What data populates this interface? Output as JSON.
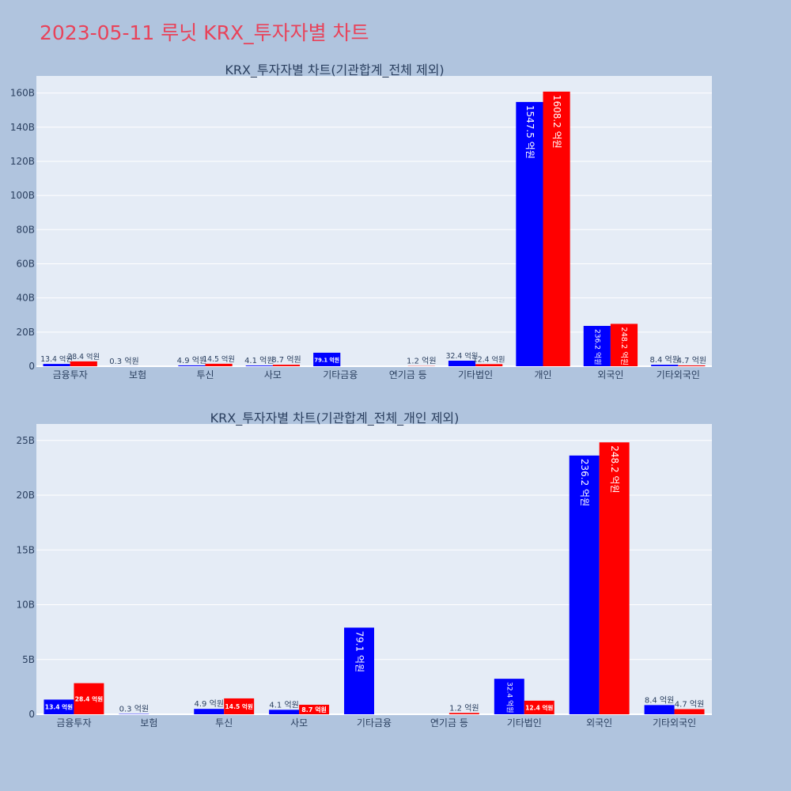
{
  "page_title": "2023-05-11 루닛 KRX_투자자별 차트",
  "chart_data": [
    {
      "type": "bar",
      "title": "KRX_투자자별 차트(기관합계_전체 제외)",
      "categories": [
        "금융투자",
        "보험",
        "투신",
        "사모",
        "기타금융",
        "연기금 등",
        "기타법인",
        "개인",
        "외국인",
        "기타외국인"
      ],
      "series": [
        {
          "color": "#0000ff",
          "values": [
            1.34,
            0.03,
            0.49,
            0.41,
            7.91,
            0,
            3.24,
            154.75,
            23.62,
            0.84
          ],
          "labels": [
            "13.4 억원",
            "0.3 억원",
            "4.9 억원",
            "4.1 억원",
            "79.1 억원",
            "",
            "32.4 억원",
            "1547.5 억원",
            "236.2 억원",
            "8.4 억원"
          ]
        },
        {
          "color": "#ff0000",
          "values": [
            2.84,
            0,
            1.45,
            0.87,
            0,
            0.12,
            1.24,
            160.82,
            24.82,
            0.47
          ],
          "labels": [
            "28.4 억원",
            "",
            "14.5 억원",
            "8.7 억원",
            "",
            "1.2 억원",
            "12.4 억원",
            "1608.2 억원",
            "248.2 억원",
            "4.7 억원"
          ]
        }
      ],
      "yticks": [
        0,
        20,
        40,
        60,
        80,
        100,
        120,
        140,
        160
      ],
      "ytick_labels": [
        "0",
        "20B",
        "40B",
        "60B",
        "80B",
        "100B",
        "120B",
        "140B",
        "160B"
      ],
      "ylim": [
        0,
        170
      ],
      "grid": true
    },
    {
      "type": "bar",
      "title": "KRX_투자자별 차트(기관합계_전체_개인 제외)",
      "categories": [
        "금융투자",
        "보험",
        "투신",
        "사모",
        "기타금융",
        "연기금 등",
        "기타법인",
        "외국인",
        "기타외국인"
      ],
      "series": [
        {
          "color": "#0000ff",
          "values": [
            1.34,
            0.03,
            0.49,
            0.41,
            7.91,
            0,
            3.24,
            23.62,
            0.84
          ],
          "labels": [
            "13.4 억원",
            "0.3 억원",
            "4.9 억원",
            "4.1 억원",
            "79.1 억원",
            "",
            "32.4 억원",
            "236.2 억원",
            "8.4 억원"
          ]
        },
        {
          "color": "#ff0000",
          "values": [
            2.84,
            0,
            1.45,
            0.87,
            0,
            0.12,
            1.24,
            24.82,
            0.47
          ],
          "labels": [
            "28.4 억원",
            "",
            "14.5 억원",
            "8.7 억원",
            "",
            "1.2 억원",
            "12.4 억원",
            "248.2 억원",
            "4.7 억원"
          ]
        }
      ],
      "yticks": [
        0,
        5,
        10,
        15,
        20,
        25
      ],
      "ytick_labels": [
        "0",
        "5B",
        "10B",
        "15B",
        "20B",
        "25B"
      ],
      "ylim": [
        0,
        26.5
      ],
      "grid": true
    }
  ]
}
